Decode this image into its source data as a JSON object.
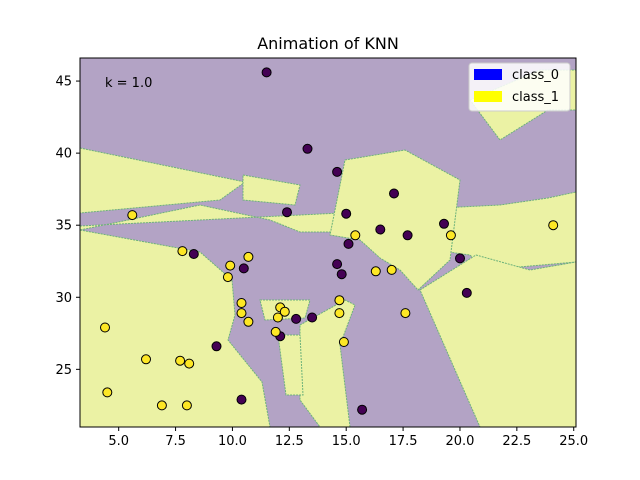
{
  "chart_data": {
    "type": "scatter",
    "title": "Animation of KNN",
    "annotation": "k = 1.0",
    "xlim": [
      3.3,
      25.1
    ],
    "ylim": [
      21.0,
      46.6
    ],
    "xticks": [
      5.0,
      7.5,
      10.0,
      12.5,
      15.0,
      17.5,
      20.0,
      22.5,
      25.0
    ],
    "xtick_labels": [
      "5.0",
      "7.5",
      "10.0",
      "12.5",
      "15.0",
      "17.5",
      "20.0",
      "22.5",
      "25.0"
    ],
    "yticks": [
      25,
      30,
      35,
      40,
      45
    ],
    "ytick_labels": [
      "25",
      "30",
      "35",
      "40",
      "45"
    ],
    "grid": false,
    "legend_position": "top-right",
    "legend": [
      {
        "label": "class_0",
        "color": "#0000ff"
      },
      {
        "label": "class_1",
        "color": "#ffff00"
      }
    ],
    "region_colors": {
      "class_0": "#b3a3c5",
      "class_1": "#ebf2a4"
    },
    "series": [
      {
        "name": "class_0",
        "color": "#440154",
        "points": [
          [
            11.5,
            45.6
          ],
          [
            13.3,
            40.3
          ],
          [
            14.6,
            38.7
          ],
          [
            17.1,
            37.2
          ],
          [
            12.4,
            35.9
          ],
          [
            15.0,
            35.8
          ],
          [
            19.3,
            35.1
          ],
          [
            8.3,
            33.0
          ],
          [
            16.5,
            34.7
          ],
          [
            17.7,
            34.3
          ],
          [
            15.1,
            33.7
          ],
          [
            20.0,
            32.7
          ],
          [
            14.6,
            32.3
          ],
          [
            14.8,
            31.6
          ],
          [
            10.5,
            32.0
          ],
          [
            20.3,
            30.3
          ],
          [
            12.8,
            28.5
          ],
          [
            13.5,
            28.6
          ],
          [
            12.1,
            27.3
          ],
          [
            9.3,
            26.6
          ],
          [
            10.4,
            22.9
          ],
          [
            15.7,
            22.2
          ]
        ]
      },
      {
        "name": "class_1",
        "color": "#fde725",
        "points": [
          [
            5.6,
            35.7
          ],
          [
            24.1,
            35.0
          ],
          [
            15.4,
            34.3
          ],
          [
            19.6,
            34.3
          ],
          [
            7.8,
            33.2
          ],
          [
            10.7,
            32.8
          ],
          [
            9.9,
            32.2
          ],
          [
            9.8,
            31.4
          ],
          [
            16.3,
            31.8
          ],
          [
            17.0,
            31.9
          ],
          [
            10.4,
            29.6
          ],
          [
            14.7,
            29.8
          ],
          [
            10.4,
            28.9
          ],
          [
            12.1,
            29.3
          ],
          [
            12.3,
            29.0
          ],
          [
            14.7,
            28.9
          ],
          [
            17.6,
            28.9
          ],
          [
            12.0,
            28.6
          ],
          [
            10.7,
            28.3
          ],
          [
            4.4,
            27.9
          ],
          [
            11.9,
            27.6
          ],
          [
            14.9,
            26.9
          ],
          [
            6.2,
            25.7
          ],
          [
            7.7,
            25.6
          ],
          [
            8.1,
            25.4
          ],
          [
            4.5,
            23.4
          ],
          [
            6.9,
            22.5
          ],
          [
            8.0,
            22.5
          ]
        ]
      }
    ]
  }
}
